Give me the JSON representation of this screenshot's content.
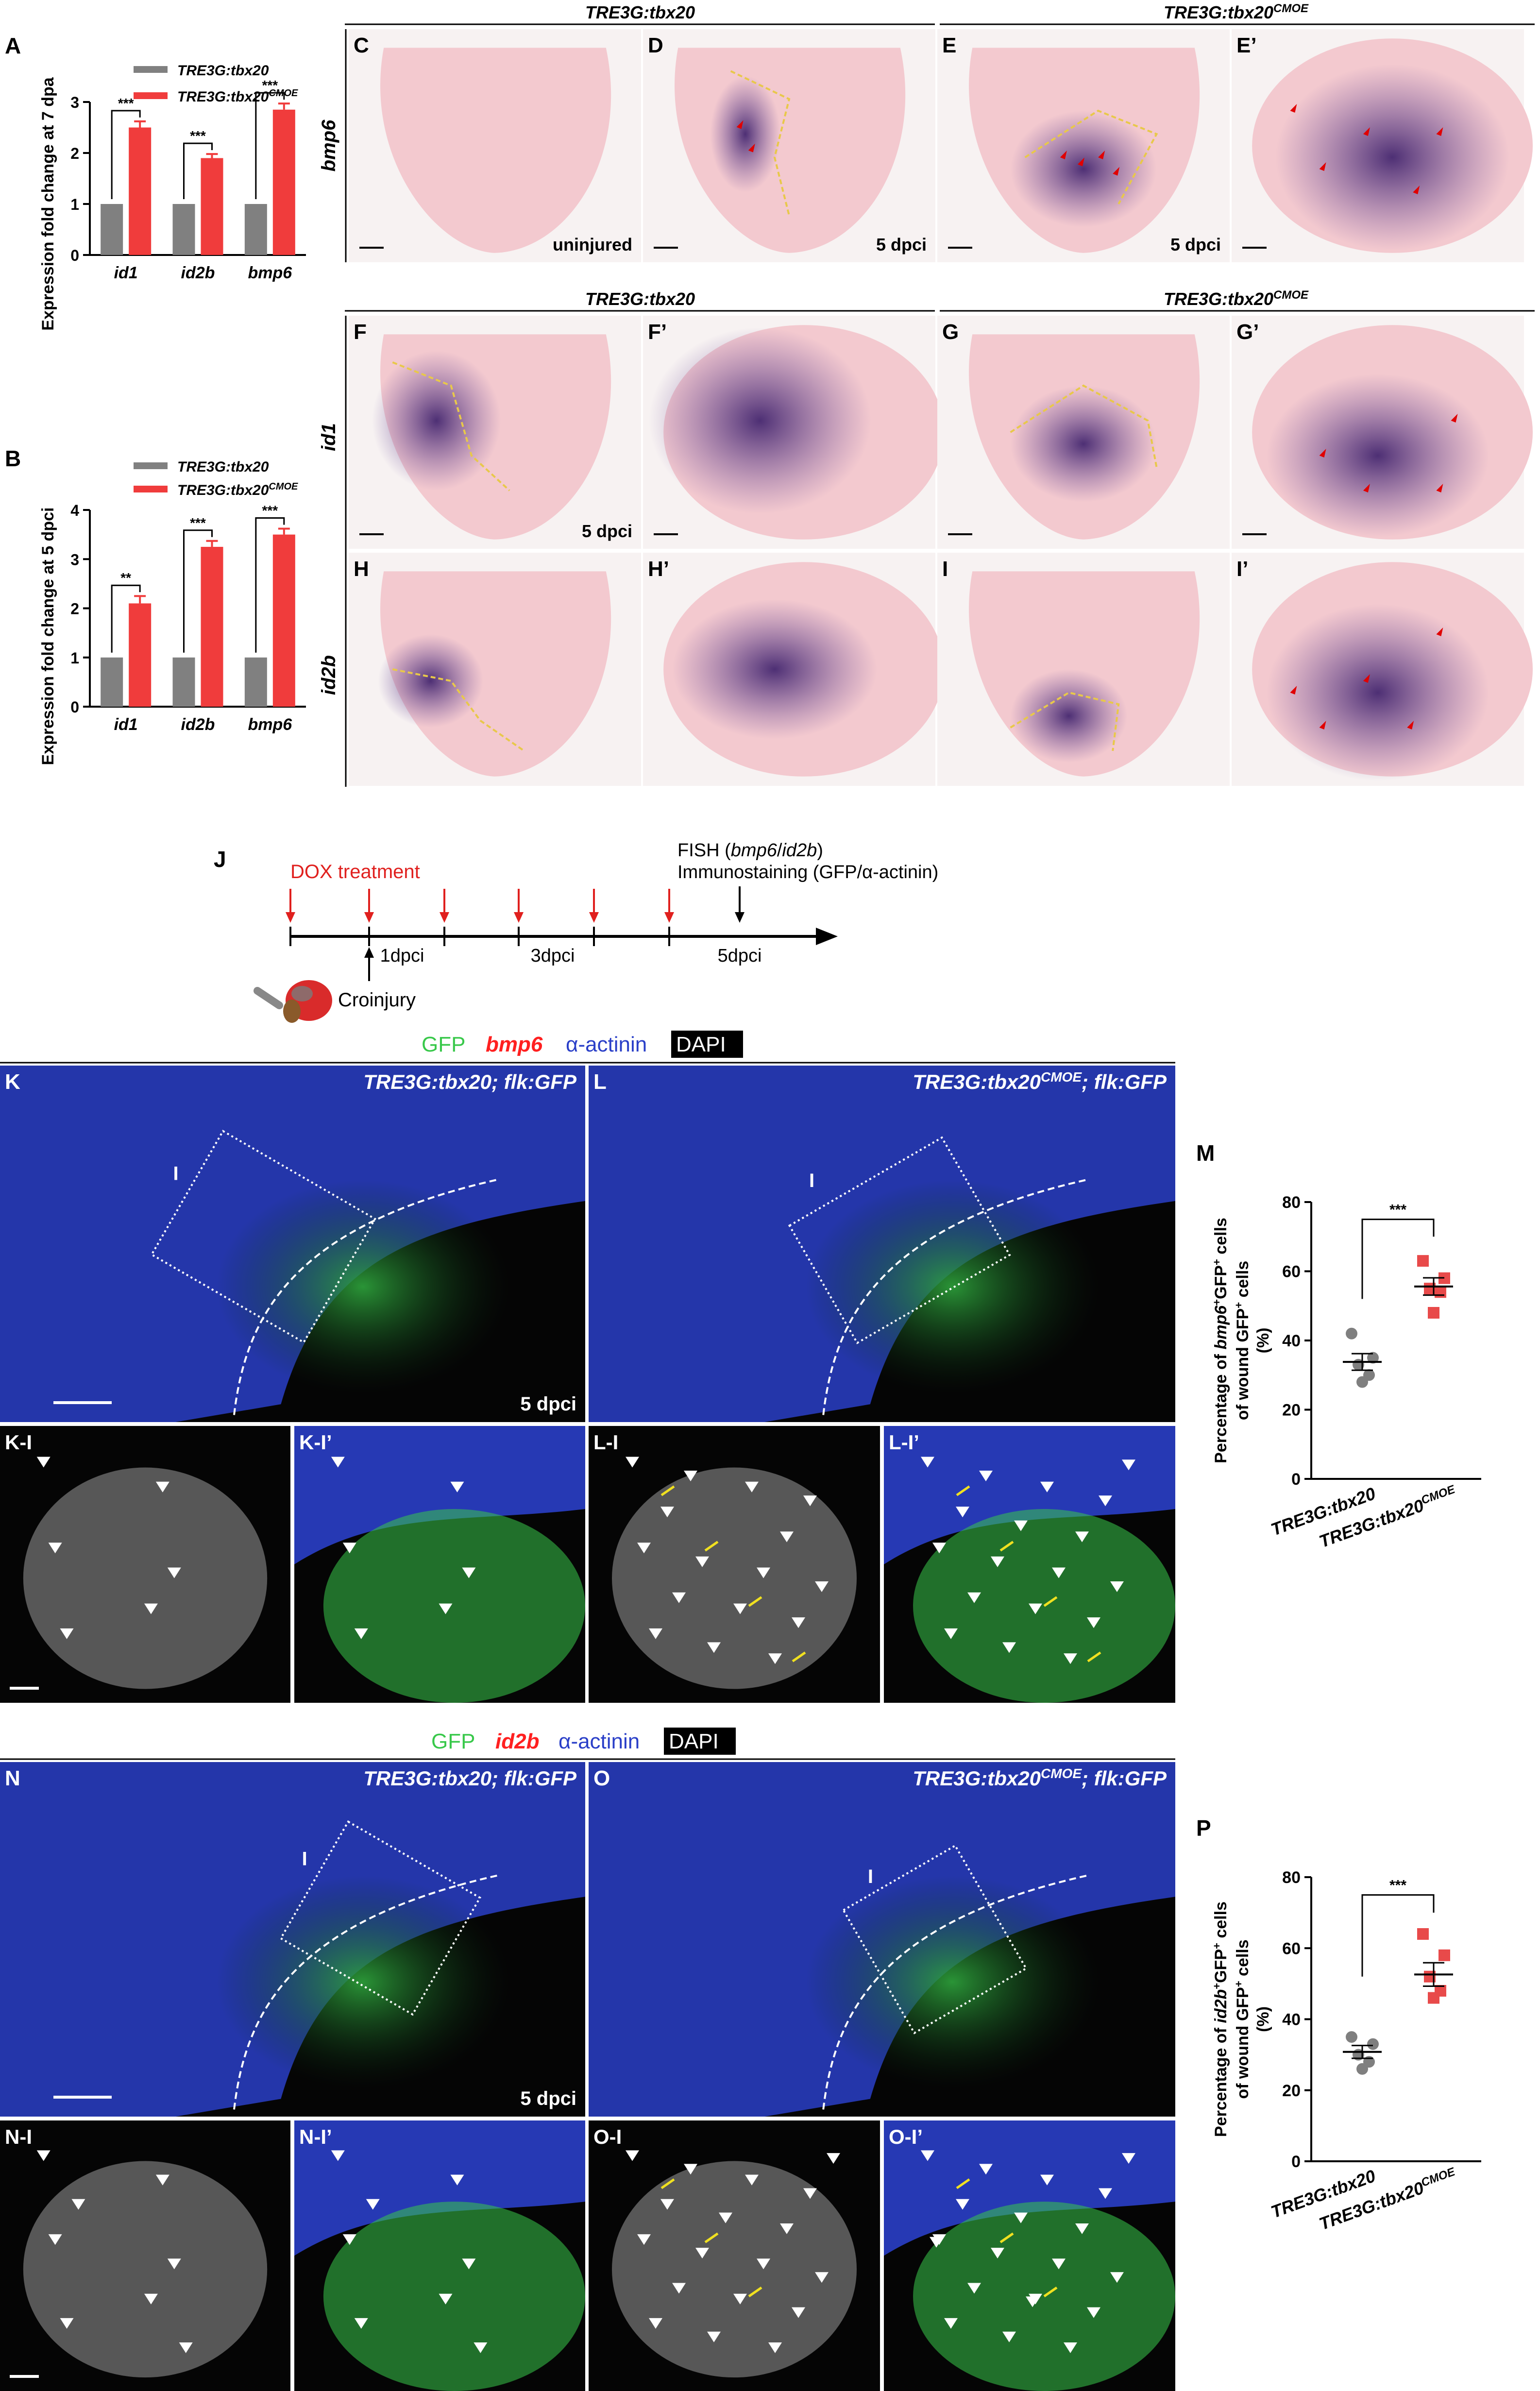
{
  "panel_letters": {
    "A": "A",
    "B": "B",
    "C": "C",
    "D": "D",
    "E": "E",
    "Ep": "E’",
    "F": "F",
    "Fp": "F’",
    "G": "G",
    "Gp": "G’",
    "H": "H",
    "Hp": "H’",
    "I": "I",
    "Ip": "I’",
    "J": "J",
    "K": "K",
    "L": "L",
    "M": "M",
    "N": "N",
    "O": "O",
    "P": "P",
    "KI": "K-I",
    "KIp": "K-I’",
    "LI": "L-I",
    "LIp": "L-I’",
    "NI": "N-I",
    "NIp": "N-I’",
    "OI": "O-I",
    "OIp": "O-I’"
  },
  "genotypes": {
    "ctrl": "TRE3G:tbx20",
    "cmoe_base": "TRE3G:tbx20",
    "cmoe_sup": "CMOE",
    "ctrl_flk": "TRE3G:tbx20; flk:GFP",
    "cmoe_flk_pre": "TRE3G:tbx20",
    "cmoe_flk_sup": "CMOE",
    "cmoe_flk_post": "; flk:GFP"
  },
  "genes": {
    "bmp6": "bmp6",
    "id1": "id1",
    "id2b": "id2b"
  },
  "isH_labels": {
    "uninjured": "uninjured",
    "dpci5": "5 dpci"
  },
  "stain_legend": {
    "gfp": "GFP",
    "actinin": "α-actinin",
    "dapi": "DAPI"
  },
  "inset_marker": "I",
  "timeline": {
    "dox": "DOX treatment",
    "fish_pre": "FISH (",
    "fish_gene1": "bmp6",
    "fish_sep": "/",
    "fish_gene2": "id2b",
    "fish_post": ")",
    "immuno": "Immunostaining (GFP/α-actinin)",
    "ticks": [
      "1dpci",
      "3dpci",
      "5dpci"
    ],
    "croinjury": "Croinjury"
  },
  "colors": {
    "control_bar": "#808080",
    "cmoe_bar": "#f03c3c",
    "control_dot": "#7f7f7f",
    "cmoe_dot": "#e84a4a",
    "dox_arrow": "#e0201e",
    "ish_bg": "#f3c9cf",
    "ish_stain": "#4b2b7a",
    "wound_line": "#e8c84a",
    "arrowhead": "#e00000",
    "fl_blue": "#2a3fc8",
    "fl_green": "#38c84a",
    "fl_red": "#ff2020"
  },
  "chart_data": [
    {
      "id": "A",
      "type": "bar",
      "ylabel": "Expression fold change at 7 dpa",
      "categories": [
        "id1",
        "id2b",
        "bmp6"
      ],
      "ylim": [
        0,
        3
      ],
      "yticks": [
        "0",
        "1",
        "2",
        "3"
      ],
      "series": [
        {
          "name": "TRE3G:tbx20",
          "values": [
            1,
            1,
            1
          ]
        },
        {
          "name": "TRE3G:tbx20CMOE",
          "values": [
            2.5,
            1.9,
            2.85
          ],
          "errors": [
            0.12,
            0.08,
            0.12
          ]
        }
      ],
      "significance": [
        "***",
        "***",
        "***"
      ]
    },
    {
      "id": "B",
      "type": "bar",
      "ylabel": "Expression fold change at 5 dpci",
      "categories": [
        "id1",
        "id2b",
        "bmp6"
      ],
      "ylim": [
        0,
        4
      ],
      "yticks": [
        "0",
        "1",
        "2",
        "3",
        "4"
      ],
      "series": [
        {
          "name": "TRE3G:tbx20",
          "values": [
            1,
            1,
            1
          ]
        },
        {
          "name": "TRE3G:tbx20CMOE",
          "values": [
            2.1,
            3.25,
            3.5
          ],
          "errors": [
            0.15,
            0.12,
            0.12
          ]
        }
      ],
      "significance": [
        "**",
        "***",
        "***"
      ]
    },
    {
      "id": "M",
      "type": "scatter",
      "ylabel_pre": "Percentage of ",
      "ylabel_gene": "bmp6",
      "ylabel_mid": "GFP",
      "ylabel_post": " cells",
      "ylabel2_pre": "of wound GFP",
      "ylabel2_post": " cells",
      "ylabel3": "(%)",
      "ylim": [
        0,
        80
      ],
      "yticks": [
        "0",
        "20",
        "40",
        "60",
        "80"
      ],
      "categories": [
        "TRE3G:tbx20",
        "TRE3G:tbx20CMOE"
      ],
      "series": [
        {
          "name": "TRE3G:tbx20",
          "values": [
            42,
            35,
            33,
            30,
            28
          ],
          "mean": 33.8,
          "sem": 2.4
        },
        {
          "name": "TRE3G:tbx20CMOE",
          "values": [
            63,
            58,
            55,
            54,
            48
          ],
          "mean": 55.6,
          "sem": 2.5
        }
      ],
      "significance": "***"
    },
    {
      "id": "P",
      "type": "scatter",
      "ylabel_pre": "Percentage of ",
      "ylabel_gene": "id2b",
      "ylabel_mid": "GFP",
      "ylabel_post": " cells",
      "ylabel2_pre": "of wound GFP",
      "ylabel2_post": " cells",
      "ylabel3": "(%)",
      "ylim": [
        0,
        80
      ],
      "yticks": [
        "0",
        "20",
        "40",
        "60",
        "80"
      ],
      "categories": [
        "TRE3G:tbx20",
        "TRE3G:tbx20CMOE"
      ],
      "series": [
        {
          "name": "TRE3G:tbx20",
          "values": [
            35,
            33,
            30,
            28,
            26
          ],
          "mean": 30.8,
          "sem": 1.8
        },
        {
          "name": "TRE3G:tbx20CMOE",
          "values": [
            64,
            58,
            52,
            48,
            46
          ],
          "mean": 52.6,
          "sem": 3.3
        }
      ],
      "significance": "***"
    }
  ]
}
